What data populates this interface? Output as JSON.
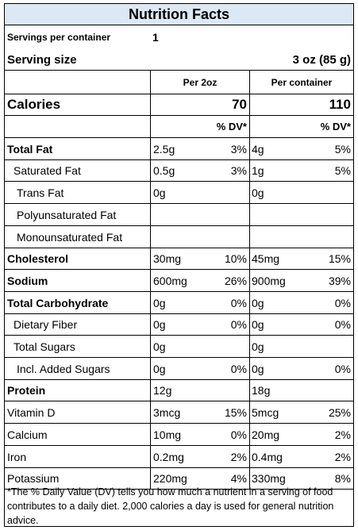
{
  "title": "Nutrition Facts",
  "servings": {
    "label": "Servings per container",
    "value": "1"
  },
  "serving_size": {
    "label": "Serving size",
    "value": "3 oz (85 g)"
  },
  "columns": {
    "per_unit": "Per 2oz",
    "per_container": "Per container"
  },
  "calories": {
    "label": "Calories",
    "per_unit": "70",
    "per_container": "110"
  },
  "dv_header": {
    "per_unit": "% DV*",
    "per_container": "% DV*"
  },
  "nutrients": [
    {
      "label": "Total Fat",
      "bold": true,
      "indent": 0,
      "a": "2.5g",
      "ap": "3%",
      "b": "4g",
      "bp": "5%"
    },
    {
      "label": "Saturated Fat",
      "bold": false,
      "indent": 1,
      "a": "0.5g",
      "ap": "3%",
      "b": "1g",
      "bp": "5%"
    },
    {
      "label": "Trans Fat",
      "bold": false,
      "indent": 2,
      "a": "0g",
      "ap": "",
      "b": "0g",
      "bp": ""
    },
    {
      "label": "Polyunsaturated Fat",
      "bold": false,
      "indent": 2,
      "a": "",
      "ap": "",
      "b": "",
      "bp": ""
    },
    {
      "label": "Monounsaturated Fat",
      "bold": false,
      "indent": 2,
      "a": "",
      "ap": "",
      "b": "",
      "bp": ""
    },
    {
      "label": "Cholesterol",
      "bold": true,
      "indent": 0,
      "a": "30mg",
      "ap": "10%",
      "b": "45mg",
      "bp": "15%"
    },
    {
      "label": "Sodium",
      "bold": true,
      "indent": 0,
      "a": "600mg",
      "ap": "26%",
      "b": "900mg",
      "bp": "39%"
    },
    {
      "label": "Total Carbohydrate",
      "bold": true,
      "indent": 0,
      "a": "0g",
      "ap": "0%",
      "b": "0g",
      "bp": "0%"
    },
    {
      "label": "Dietary Fiber",
      "bold": false,
      "indent": 1,
      "a": "0g",
      "ap": "0%",
      "b": "0g",
      "bp": "0%"
    },
    {
      "label": "Total Sugars",
      "bold": false,
      "indent": 1,
      "a": "0g",
      "ap": "",
      "b": "0g",
      "bp": ""
    },
    {
      "label": "Incl. Added Sugars",
      "bold": false,
      "indent": 2,
      "a": "0g",
      "ap": "0%",
      "b": "0g",
      "bp": "0%"
    },
    {
      "label": "Protein",
      "bold": true,
      "indent": 0,
      "a": "12g",
      "ap": "",
      "b": "18g",
      "bp": ""
    },
    {
      "label": "Vitamin D",
      "bold": false,
      "indent": 0,
      "a": "3mcg",
      "ap": "15%",
      "b": "5mcg",
      "bp": "25%"
    },
    {
      "label": "Calcium",
      "bold": false,
      "indent": 0,
      "a": "10mg",
      "ap": "0%",
      "b": "20mg",
      "bp": "2%"
    },
    {
      "label": "Iron",
      "bold": false,
      "indent": 0,
      "a": "0.2mg",
      "ap": "2%",
      "b": "0.4mg",
      "bp": "2%"
    },
    {
      "label": "Potassium",
      "bold": false,
      "indent": 0,
      "a": "220mg",
      "ap": "4%",
      "b": "330mg",
      "bp": "8%"
    }
  ],
  "footnote": "*The % Daily Value (DV) tells you how much a nutrient in a serving of food contributes to a daily diet. 2,000 calories a day is used for general nutrition advice.",
  "colors": {
    "title_bg": "#dce9f5",
    "border": "#000000"
  }
}
